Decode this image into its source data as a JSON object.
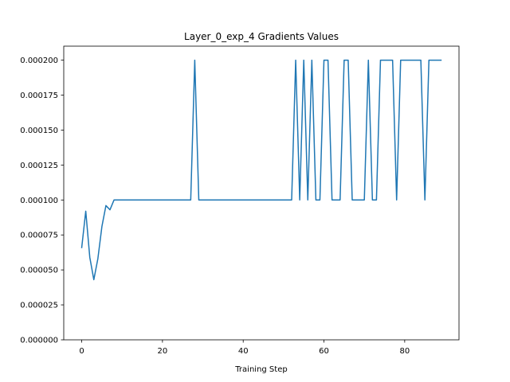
{
  "chart_data": {
    "type": "line",
    "title": "Layer_0_exp_4 Gradients Values",
    "xlabel": "Training Step",
    "ylabel": "",
    "xlim": [
      -4.45,
      93.45
    ],
    "ylim": [
      0.0,
      0.00021
    ],
    "x_ticks": [
      0,
      20,
      40,
      60,
      80
    ],
    "x_tick_labels": [
      "0",
      "20",
      "40",
      "60",
      "80"
    ],
    "y_ticks": [
      0.0,
      2.5e-05,
      5e-05,
      7.5e-05,
      0.0001,
      0.000125,
      0.00015,
      0.000175,
      0.0002
    ],
    "y_tick_labels": [
      "0.000000",
      "0.000025",
      "0.000050",
      "0.000075",
      "0.000100",
      "0.000125",
      "0.000150",
      "0.000175",
      "0.000200"
    ],
    "grid": false,
    "series": [
      {
        "color": "#1f77b4",
        "x": [
          0,
          1,
          2,
          3,
          4,
          5,
          6,
          7,
          8,
          9,
          10,
          11,
          12,
          13,
          14,
          15,
          16,
          17,
          18,
          19,
          20,
          21,
          22,
          23,
          24,
          25,
          26,
          27,
          28,
          29,
          30,
          31,
          32,
          33,
          34,
          35,
          36,
          37,
          38,
          39,
          40,
          41,
          42,
          43,
          44,
          45,
          46,
          47,
          48,
          49,
          50,
          51,
          52,
          53,
          54,
          55,
          56,
          57,
          58,
          59,
          60,
          61,
          62,
          63,
          64,
          65,
          66,
          67,
          68,
          69,
          70,
          71,
          72,
          73,
          74,
          75,
          76,
          77,
          78,
          79,
          80,
          81,
          82,
          83,
          84,
          85,
          86,
          87,
          88,
          89
        ],
        "values": [
          6.6e-05,
          9.2e-05,
          5.9e-05,
          4.3e-05,
          5.8e-05,
          8.1e-05,
          9.6e-05,
          9.3e-05,
          0.0001,
          0.0001,
          0.0001,
          0.0001,
          0.0001,
          0.0001,
          0.0001,
          0.0001,
          0.0001,
          0.0001,
          0.0001,
          0.0001,
          0.0001,
          0.0001,
          0.0001,
          0.0001,
          0.0001,
          0.0001,
          0.0001,
          0.0001,
          0.0002,
          0.0001,
          0.0001,
          0.0001,
          0.0001,
          0.0001,
          0.0001,
          0.0001,
          0.0001,
          0.0001,
          0.0001,
          0.0001,
          0.0001,
          0.0001,
          0.0001,
          0.0001,
          0.0001,
          0.0001,
          0.0001,
          0.0001,
          0.0001,
          0.0001,
          0.0001,
          0.0001,
          0.0001,
          0.0002,
          0.0001,
          0.0002,
          0.0001,
          0.0002,
          0.0001,
          0.0001,
          0.0002,
          0.0002,
          0.0001,
          0.0001,
          0.0001,
          0.0002,
          0.0002,
          0.0001,
          0.0001,
          0.0001,
          0.0001,
          0.0002,
          0.0001,
          0.0001,
          0.0002,
          0.0002,
          0.0002,
          0.0002,
          0.0001,
          0.0002,
          0.0002,
          0.0002,
          0.0002,
          0.0002,
          0.0002,
          0.0001,
          0.0002,
          0.0002,
          0.0002,
          0.0002
        ]
      }
    ]
  }
}
